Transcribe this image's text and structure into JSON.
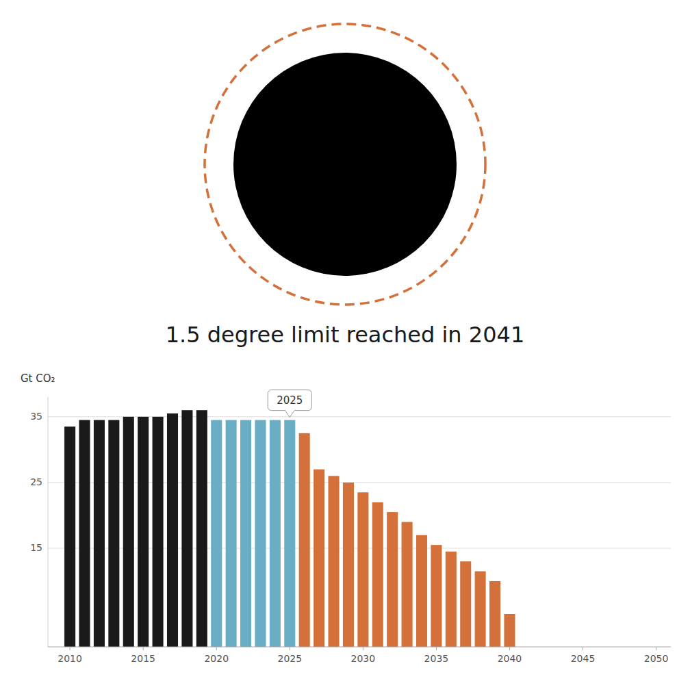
{
  "chart_data": {
    "type": "bar",
    "title": "1.5 degree limit reached in 2041",
    "y_label": "Gt CO₂",
    "x": [
      2010,
      2011,
      2012,
      2013,
      2014,
      2015,
      2016,
      2017,
      2018,
      2019,
      2020,
      2021,
      2022,
      2023,
      2024,
      2025,
      2026,
      2027,
      2028,
      2029,
      2030,
      2031,
      2032,
      2033,
      2034,
      2035,
      2036,
      2037,
      2038,
      2039,
      2040
    ],
    "values": [
      33.5,
      34.5,
      34.5,
      34.5,
      35.0,
      35.0,
      35.0,
      35.5,
      36.0,
      36.0,
      34.5,
      34.5,
      34.5,
      34.5,
      34.5,
      34.5,
      32.5,
      27.0,
      26.0,
      25.0,
      23.5,
      22.0,
      20.5,
      19.0,
      17.0,
      15.5,
      14.5,
      13.0,
      11.5,
      10.0,
      5.0
    ],
    "colors": [
      "#1a1a1a",
      "#1a1a1a",
      "#1a1a1a",
      "#1a1a1a",
      "#1a1a1a",
      "#1a1a1a",
      "#1a1a1a",
      "#1a1a1a",
      "#1a1a1a",
      "#1a1a1a",
      "#6aaec6",
      "#6aaec6",
      "#6aaec6",
      "#6aaec6",
      "#6aaec6",
      "#6aaec6",
      "#d4703a",
      "#d4703a",
      "#d4703a",
      "#d4703a",
      "#d4703a",
      "#d4703a",
      "#d4703a",
      "#d4703a",
      "#d4703a",
      "#d4703a",
      "#d4703a",
      "#d4703a",
      "#d4703a",
      "#d4703a",
      "#d4703a"
    ],
    "annotations": [
      {
        "text": "2025",
        "x": 2025
      }
    ],
    "xlim": [
      2008.5,
      2051
    ],
    "ylim": [
      0,
      38
    ],
    "xticks": [
      2010,
      2015,
      2020,
      2025,
      2030,
      2035,
      2040,
      2045,
      2050
    ],
    "yticks": [
      15,
      25,
      35
    ],
    "grid": true
  }
}
